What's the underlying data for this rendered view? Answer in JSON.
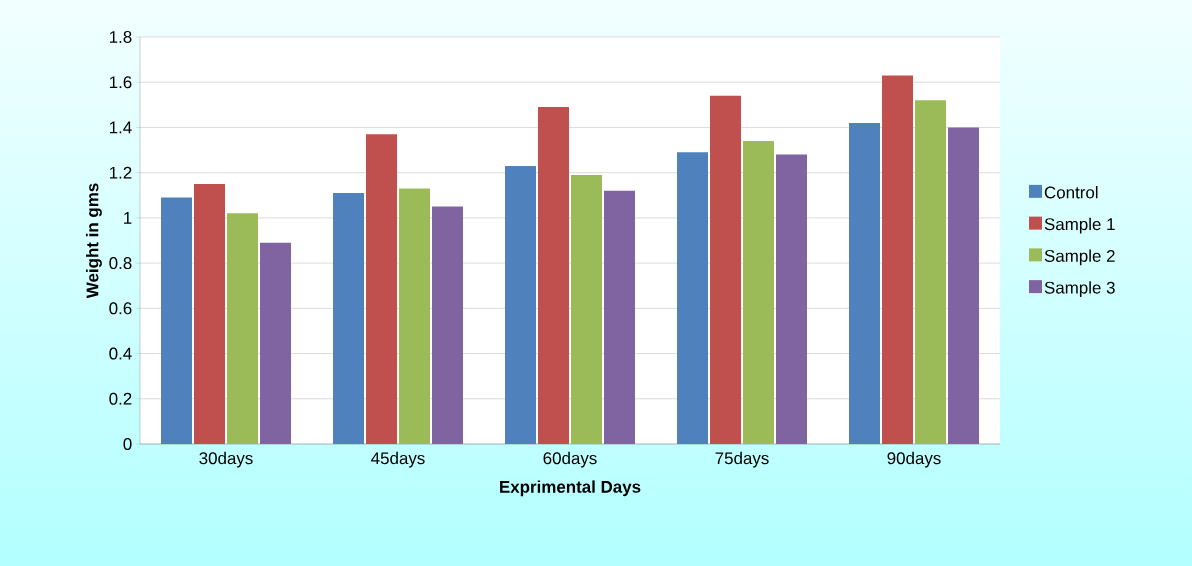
{
  "chart_data": {
    "type": "bar",
    "xlabel": "Exprimental Days",
    "ylabel": "Weight in gms",
    "categories": [
      "30days",
      "45days",
      "60days",
      "75days",
      "90days"
    ],
    "series": [
      {
        "name": "Control",
        "color": "#4f81bd",
        "values": [
          1.09,
          1.11,
          1.23,
          1.29,
          1.42
        ]
      },
      {
        "name": "Sample 1",
        "color": "#c0504d",
        "values": [
          1.15,
          1.37,
          1.49,
          1.54,
          1.63
        ]
      },
      {
        "name": "Sample 2",
        "color": "#9bbb59",
        "values": [
          1.02,
          1.13,
          1.19,
          1.34,
          1.52
        ]
      },
      {
        "name": "Sample 3",
        "color": "#8064a2",
        "values": [
          0.89,
          1.05,
          1.12,
          1.28,
          1.4
        ]
      }
    ],
    "ylim": [
      0,
      1.8
    ],
    "yticks": [
      0,
      0.2,
      0.4,
      0.6,
      0.8,
      1,
      1.2,
      1.4,
      1.6,
      1.8
    ],
    "grid": "y",
    "legend": "right"
  }
}
